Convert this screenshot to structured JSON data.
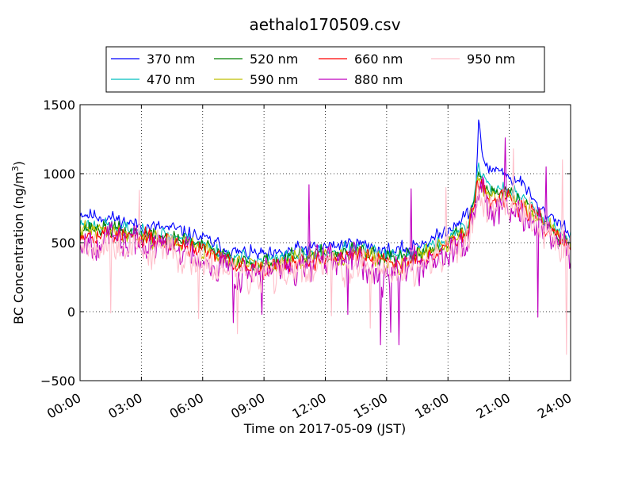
{
  "chart_data": {
    "type": "line",
    "title": "aethalo170509.csv",
    "xlabel": "Time on 2017-05-09 (JST)",
    "ylabel": "BC Concentration (ng/m³)",
    "ylabel_main": "BC Concentration (ng/m",
    "ylabel_sup": "3",
    "ylabel_end": ")",
    "xlim": [
      0,
      24
    ],
    "ylim": [
      -500,
      1500
    ],
    "x_ticks": [
      0,
      3,
      6,
      9,
      12,
      15,
      18,
      21,
      24
    ],
    "x_tick_labels": [
      "00:00",
      "03:00",
      "06:00",
      "09:00",
      "12:00",
      "15:00",
      "18:00",
      "21:00",
      "24:00"
    ],
    "y_ticks": [
      -500,
      0,
      500,
      1000,
      1500
    ],
    "y_tick_labels": [
      "−500",
      "0",
      "500",
      "1000",
      "1500"
    ],
    "grid": true,
    "legend_position": "top-center",
    "x_unit": "hours",
    "series": [
      {
        "name": "370 nm",
        "color": "#0000ff",
        "profile": [
          [
            0,
            720
          ],
          [
            0.5,
            700
          ],
          [
            1.5,
            680
          ],
          [
            3,
            620
          ],
          [
            4.5,
            600
          ],
          [
            5.5,
            560
          ],
          [
            6.5,
            500
          ],
          [
            7.5,
            430
          ],
          [
            8.5,
            420
          ],
          [
            9.5,
            400
          ],
          [
            10.5,
            450
          ],
          [
            11.5,
            460
          ],
          [
            12.5,
            480
          ],
          [
            13.5,
            500
          ],
          [
            14.5,
            460
          ],
          [
            15.5,
            430
          ],
          [
            16.5,
            490
          ],
          [
            17.5,
            540
          ],
          [
            18.5,
            660
          ],
          [
            19,
            710
          ],
          [
            19.35,
            820
          ],
          [
            19.5,
            1380
          ],
          [
            19.65,
            1150
          ],
          [
            20,
            1020
          ],
          [
            20.5,
            1050
          ],
          [
            21,
            960
          ],
          [
            21.5,
            960
          ],
          [
            22,
            850
          ],
          [
            22.5,
            730
          ],
          [
            23,
            700
          ],
          [
            23.5,
            650
          ],
          [
            24,
            560
          ]
        ],
        "noise": 70,
        "spikes": [],
        "seed": 11
      },
      {
        "name": "470 nm",
        "color": "#00bfbf",
        "profile": [
          [
            0,
            640
          ],
          [
            1.5,
            620
          ],
          [
            3,
            580
          ],
          [
            4.5,
            550
          ],
          [
            5.5,
            520
          ],
          [
            6.5,
            460
          ],
          [
            7.5,
            390
          ],
          [
            8.5,
            380
          ],
          [
            9.5,
            370
          ],
          [
            10.5,
            410
          ],
          [
            11.5,
            420
          ],
          [
            12.5,
            440
          ],
          [
            13.5,
            460
          ],
          [
            14.5,
            420
          ],
          [
            15.5,
            390
          ],
          [
            16.5,
            440
          ],
          [
            17.5,
            490
          ],
          [
            18.5,
            580
          ],
          [
            19,
            620
          ],
          [
            19.5,
            1050
          ],
          [
            19.75,
            980
          ],
          [
            20,
            900
          ],
          [
            21,
            880
          ],
          [
            22,
            780
          ],
          [
            23,
            640
          ],
          [
            24,
            520
          ]
        ],
        "noise": 75,
        "spikes": [],
        "seed": 23
      },
      {
        "name": "520 nm",
        "color": "#008000",
        "profile": [
          [
            0,
            610
          ],
          [
            1.5,
            600
          ],
          [
            3,
            560
          ],
          [
            4.5,
            530
          ],
          [
            5.5,
            500
          ],
          [
            6.5,
            440
          ],
          [
            7.5,
            370
          ],
          [
            8.5,
            360
          ],
          [
            9.5,
            350
          ],
          [
            10.5,
            390
          ],
          [
            11.5,
            400
          ],
          [
            12.5,
            420
          ],
          [
            13.5,
            440
          ],
          [
            14.5,
            400
          ],
          [
            15.5,
            370
          ],
          [
            16.5,
            420
          ],
          [
            17.5,
            470
          ],
          [
            18.5,
            560
          ],
          [
            19,
            600
          ],
          [
            19.5,
            1000
          ],
          [
            20,
            880
          ],
          [
            21,
            860
          ],
          [
            22,
            760
          ],
          [
            23,
            620
          ],
          [
            24,
            500
          ]
        ],
        "noise": 80,
        "spikes": [],
        "seed": 37
      },
      {
        "name": "590 nm",
        "color": "#bfbf00",
        "profile": [
          [
            0,
            590
          ],
          [
            1.5,
            580
          ],
          [
            3,
            540
          ],
          [
            4.5,
            510
          ],
          [
            5.5,
            480
          ],
          [
            6.5,
            420
          ],
          [
            7.5,
            350
          ],
          [
            8.5,
            340
          ],
          [
            9.5,
            330
          ],
          [
            10.5,
            370
          ],
          [
            11.5,
            380
          ],
          [
            12.5,
            400
          ],
          [
            13.5,
            420
          ],
          [
            14.5,
            380
          ],
          [
            15.5,
            350
          ],
          [
            16.5,
            400
          ],
          [
            17.5,
            450
          ],
          [
            18.5,
            540
          ],
          [
            19,
            580
          ],
          [
            19.5,
            960
          ],
          [
            20,
            850
          ],
          [
            21,
            830
          ],
          [
            22,
            740
          ],
          [
            23,
            600
          ],
          [
            24,
            480
          ]
        ],
        "noise": 85,
        "spikes": [],
        "seed": 41
      },
      {
        "name": "660 nm",
        "color": "#ff0000",
        "profile": [
          [
            0,
            570
          ],
          [
            1.5,
            560
          ],
          [
            3,
            530
          ],
          [
            4.5,
            500
          ],
          [
            5.5,
            470
          ],
          [
            6.5,
            410
          ],
          [
            7.5,
            340
          ],
          [
            8.5,
            330
          ],
          [
            9.5,
            320
          ],
          [
            10.5,
            360
          ],
          [
            11.5,
            370
          ],
          [
            12.5,
            390
          ],
          [
            13.5,
            410
          ],
          [
            14.5,
            370
          ],
          [
            15.5,
            340
          ],
          [
            16.5,
            390
          ],
          [
            17.5,
            440
          ],
          [
            18.5,
            530
          ],
          [
            19,
            570
          ],
          [
            19.5,
            930
          ],
          [
            20,
            830
          ],
          [
            21,
            810
          ],
          [
            22,
            720
          ],
          [
            23,
            580
          ],
          [
            24,
            460
          ]
        ],
        "noise": 90,
        "spikes": [],
        "seed": 53
      },
      {
        "name": "880 nm",
        "color": "#bf00bf",
        "profile": [
          [
            0,
            530
          ],
          [
            1.5,
            520
          ],
          [
            3,
            490
          ],
          [
            4.5,
            460
          ],
          [
            5.5,
            430
          ],
          [
            6.5,
            370
          ],
          [
            7.5,
            300
          ],
          [
            8.5,
            290
          ],
          [
            9.5,
            280
          ],
          [
            10.5,
            320
          ],
          [
            11.5,
            330
          ],
          [
            12.5,
            350
          ],
          [
            13.5,
            370
          ],
          [
            14.5,
            330
          ],
          [
            15.5,
            300
          ],
          [
            16.5,
            350
          ],
          [
            17.5,
            400
          ],
          [
            18.5,
            490
          ],
          [
            19,
            530
          ],
          [
            19.5,
            880
          ],
          [
            20,
            790
          ],
          [
            21,
            790
          ],
          [
            22,
            700
          ],
          [
            23,
            560
          ],
          [
            24,
            430
          ]
        ],
        "noise": 170,
        "spikes": [
          [
            7.5,
            -80
          ],
          [
            8.9,
            -20
          ],
          [
            11.2,
            920
          ],
          [
            13.1,
            -20
          ],
          [
            14.7,
            -240
          ],
          [
            15.2,
            -150
          ],
          [
            15.6,
            -240
          ],
          [
            16.2,
            890
          ],
          [
            20.8,
            1260
          ],
          [
            22.4,
            -40
          ],
          [
            22.8,
            1050
          ]
        ],
        "seed": 67
      },
      {
        "name": "950 nm",
        "color": "#ffc0cb",
        "profile": [
          [
            0,
            500
          ],
          [
            1.5,
            490
          ],
          [
            3,
            460
          ],
          [
            4.5,
            430
          ],
          [
            5.5,
            400
          ],
          [
            6.5,
            340
          ],
          [
            7.5,
            270
          ],
          [
            8.5,
            260
          ],
          [
            9.5,
            250
          ],
          [
            10.5,
            290
          ],
          [
            11.5,
            300
          ],
          [
            12.5,
            320
          ],
          [
            13.5,
            340
          ],
          [
            14.5,
            300
          ],
          [
            15.5,
            270
          ],
          [
            16.5,
            320
          ],
          [
            17.5,
            370
          ],
          [
            18.5,
            460
          ],
          [
            19,
            500
          ],
          [
            19.5,
            840
          ],
          [
            20,
            760
          ],
          [
            21,
            770
          ],
          [
            22,
            680
          ],
          [
            23,
            540
          ],
          [
            24,
            400
          ]
        ],
        "noise": 180,
        "spikes": [
          [
            1.5,
            -10
          ],
          [
            2.9,
            880
          ],
          [
            5.8,
            -50
          ],
          [
            7.7,
            -160
          ],
          [
            9.5,
            130
          ],
          [
            12.3,
            -30
          ],
          [
            14.2,
            -120
          ],
          [
            17.9,
            900
          ],
          [
            21.2,
            1180
          ],
          [
            23.6,
            1100
          ],
          [
            23.8,
            -310
          ]
        ],
        "seed": 79
      }
    ]
  }
}
